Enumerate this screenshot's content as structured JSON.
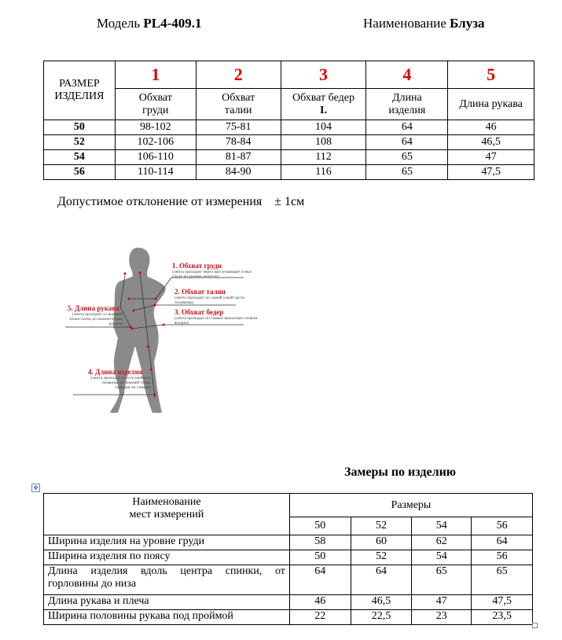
{
  "header": {
    "model_label": "Модель",
    "model_value": "PL4-409.1",
    "name_label": "Наименование",
    "name_value": "Блуза"
  },
  "size_table": {
    "size_header": "РАЗМЕР ИЗДЕЛИЯ",
    "columns": [
      {
        "num": "1",
        "label": "Обхват груди"
      },
      {
        "num": "2",
        "label": "Обхват талии"
      },
      {
        "num": "3",
        "label": "Обхват бедер",
        "sub": "I."
      },
      {
        "num": "4",
        "label": "Длина изделия"
      },
      {
        "num": "5",
        "label": "Длина рукава"
      }
    ],
    "rows": [
      [
        "50",
        "98-102",
        "75-81",
        "104",
        "64",
        "46"
      ],
      [
        "52",
        "102-106",
        "78-84",
        "108",
        "64",
        "46,5"
      ],
      [
        "54",
        "106-110",
        "81-87",
        "112",
        "65",
        "47"
      ],
      [
        "56",
        "110-114",
        "84-90",
        "116",
        "65",
        "47,5"
      ]
    ]
  },
  "tolerance": {
    "text": "Допустимое отклонение от измерения",
    "value": "± 1см"
  },
  "figure": {
    "labels": [
      {
        "title": "1. Обхват груди",
        "note": "(лента проходит через выступающие точки груди на уровне лопаток)"
      },
      {
        "title": "2. Обхват талии",
        "note": "(лента проходит по самой узкой части туловища)"
      },
      {
        "title": "3. Обхват бедер",
        "note": "(лента проходит по самым выпуклым точкам ягодиц)"
      },
      {
        "title": "5. Длина рукава",
        "note": "(лента проходит от высшей точки плеча до нижнего края рукава)"
      },
      {
        "title": "4. Длина изделия",
        "note": "(лента проходит от 6-го шейного позвонка до нижней точки изделия по спинке)"
      }
    ]
  },
  "product_table": {
    "title": "Замеры по изделию",
    "name_header": "Наименование мест измерений",
    "sizes_header": "Размеры",
    "sizes": [
      "50",
      "52",
      "54",
      "56"
    ],
    "rows": [
      {
        "name": "Ширина изделия на уровне груди",
        "values": [
          "58",
          "60",
          "62",
          "64"
        ]
      },
      {
        "name": "Ширина изделия по поясу",
        "values": [
          "50",
          "52",
          "54",
          "56"
        ]
      },
      {
        "name": "Длина изделия вдоль центра спинки, от горловины до низа",
        "values": [
          "64",
          "64",
          "65",
          "65"
        ]
      },
      {
        "name": "Длина рукава и плеча",
        "values": [
          "46",
          "46,5",
          "47",
          "47,5"
        ]
      },
      {
        "name": "Ширина половины рукава под проймой",
        "values": [
          "22",
          "22,5",
          "23",
          "23,5"
        ]
      }
    ]
  }
}
